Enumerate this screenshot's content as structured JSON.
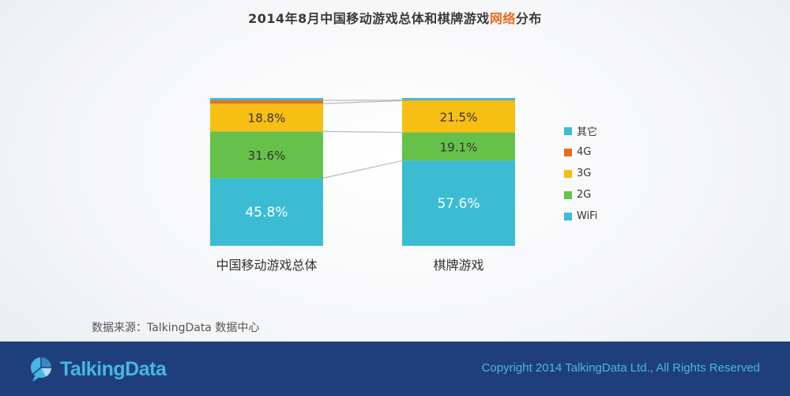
{
  "title": {
    "main": "2014年8月中国移动游戏总体和棋牌游戏",
    "highlight": "网络",
    "tail": "分布"
  },
  "chart_data": {
    "type": "bar",
    "stacked": true,
    "percent": true,
    "categories": [
      "中国移动游戏总体",
      "棋牌游戏"
    ],
    "series": [
      {
        "name": "WiFi",
        "color": "#3bbcd3",
        "values": [
          45.8,
          57.6
        ]
      },
      {
        "name": "2G",
        "color": "#66c14a",
        "values": [
          31.6,
          19.1
        ]
      },
      {
        "name": "3G",
        "color": "#f7be14",
        "values": [
          18.8,
          21.5
        ]
      },
      {
        "name": "4G",
        "color": "#f06a1e",
        "values": [
          2.2,
          0.4
        ]
      },
      {
        "name": "其它",
        "color": "#3bbcd3",
        "values": [
          1.6,
          1.4
        ]
      }
    ],
    "labels": [
      {
        "series": 0,
        "values": [
          "45.8%",
          "57.6%"
        ]
      },
      {
        "series": 1,
        "values": [
          "31.6%",
          "19.1%"
        ]
      },
      {
        "series": 2,
        "values": [
          "18.8%",
          "21.5%"
        ]
      }
    ],
    "ylim": [
      0,
      100
    ],
    "legend_position": "right"
  },
  "legend": [
    {
      "name": "其它",
      "color": "#3bbcd3"
    },
    {
      "name": "4G",
      "color": "#f06a1e"
    },
    {
      "name": "3G",
      "color": "#f7be14"
    },
    {
      "name": "2G",
      "color": "#66c14a"
    },
    {
      "name": "WiFi",
      "color": "#3bbcd3"
    }
  ],
  "source": "数据来源：TalkingData 数据中心",
  "footer": {
    "logo_text": "TalkingData",
    "copyright": "Copyright 2014 TalkingData Ltd., All Rights Reserved",
    "logo_icon": "speech-bubble-pie-icon"
  }
}
